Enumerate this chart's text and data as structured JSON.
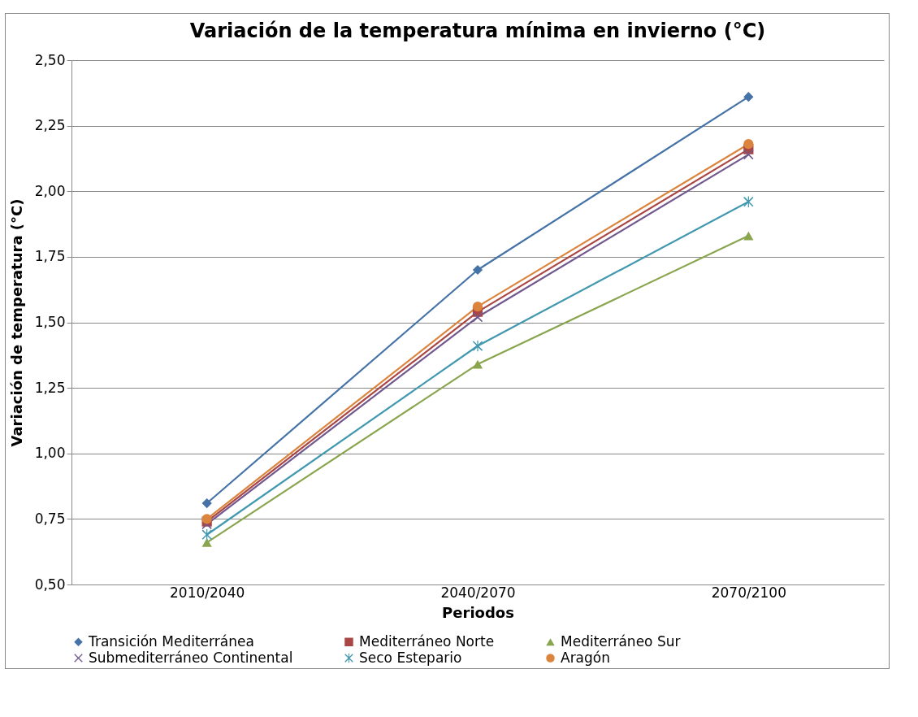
{
  "chart_data": {
    "type": "line",
    "title": "Variación de la temperatura mínima en invierno (°C)",
    "xlabel": "Periodos",
    "ylabel": "Variación de temperatura (°C)",
    "categories": [
      "2010/2040",
      "2040/2070",
      "2070/2100"
    ],
    "series": [
      {
        "name": "Transición Mediterránea",
        "color": "#4572a7",
        "marker": "diamond",
        "values": [
          0.81,
          1.7,
          2.36
        ]
      },
      {
        "name": "Mediterráneo Norte",
        "color": "#aa4643",
        "marker": "square",
        "values": [
          0.74,
          1.54,
          2.16
        ]
      },
      {
        "name": "Mediterráneo Sur",
        "color": "#89a54e",
        "marker": "triangle",
        "values": [
          0.66,
          1.34,
          1.83
        ]
      },
      {
        "name": "Submediterráneo Continental",
        "color": "#71588f",
        "marker": "cross",
        "values": [
          0.73,
          1.52,
          2.14
        ]
      },
      {
        "name": "Seco Estepario",
        "color": "#4198af",
        "marker": "star",
        "values": [
          0.69,
          1.41,
          1.96
        ]
      },
      {
        "name": "Aragón",
        "color": "#db843d",
        "marker": "circle",
        "values": [
          0.75,
          1.56,
          2.18
        ]
      }
    ],
    "ylim": [
      0.5,
      2.5
    ],
    "yticks": [
      {
        "value": 0.5,
        "label": "0,50"
      },
      {
        "value": 0.75,
        "label": "0,75"
      },
      {
        "value": 1,
        "label": "1,00"
      },
      {
        "value": 1.25,
        "label": "1,25"
      },
      {
        "value": 1.5,
        "label": "1,50"
      },
      {
        "value": 1.75,
        "label": "1,75"
      },
      {
        "value": 2,
        "label": "2,00"
      },
      {
        "value": 2.25,
        "label": "2,25"
      },
      {
        "value": 2.5,
        "label": "2,50"
      }
    ],
    "grid": "y",
    "legend": "bottom",
    "line_style": "solid"
  }
}
